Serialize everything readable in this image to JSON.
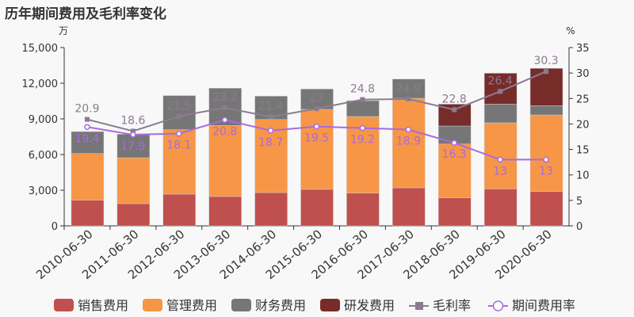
{
  "title": "历年期间费用及毛利率变化",
  "chart_data": {
    "type": "bar",
    "title": "历年期间费用及毛利率变化",
    "left_unit": "万",
    "right_unit": "%",
    "ylim_left": [
      0,
      15000
    ],
    "yticks_left": [
      "0",
      "3,000",
      "6,000",
      "9,000",
      "12,000",
      "15,000"
    ],
    "ylim_right": [
      0,
      35
    ],
    "yticks_right": [
      "0",
      "5",
      "10",
      "15",
      "20",
      "25",
      "30",
      "35"
    ],
    "categories": [
      "2010-06-30",
      "2011-06-30",
      "2012-06-30",
      "2013-06-30",
      "2014-06-30",
      "2015-06-30",
      "2016-06-30",
      "2017-06-30",
      "2018-06-30",
      "2019-06-30",
      "2020-06-30"
    ],
    "bar_series": [
      {
        "name": "销售费用",
        "color": "#c0504d",
        "values": [
          2150,
          1870,
          2670,
          2470,
          2800,
          3070,
          2760,
          3200,
          2360,
          3110,
          2890
        ]
      },
      {
        "name": "管理费用",
        "color": "#f79646",
        "values": [
          3940,
          3860,
          5420,
          5970,
          6150,
          6730,
          6440,
          7530,
          4530,
          5560,
          6440
        ]
      },
      {
        "name": "财务费用",
        "color": "#767676",
        "values": [
          1840,
          1980,
          2870,
          3140,
          1960,
          1710,
          1330,
          1620,
          1510,
          1570,
          780
        ]
      },
      {
        "name": "研发费用",
        "color": "#772c2a",
        "values": [
          0,
          0,
          0,
          0,
          0,
          0,
          0,
          0,
          1840,
          2600,
          3140
        ]
      }
    ],
    "line_series": [
      {
        "name": "毛利率",
        "color": "#8c7b8f",
        "values": [
          20.9,
          18.6,
          21.5,
          23.2,
          21.4,
          23,
          24.8,
          24.9,
          22.8,
          26.4,
          30.3
        ]
      },
      {
        "name": "期间费用率",
        "color": "#a86ae0",
        "values": [
          19.4,
          17.9,
          18.1,
          20.8,
          18.7,
          19.5,
          19.2,
          18.9,
          16.3,
          13,
          13
        ]
      }
    ],
    "legend": "bottom"
  }
}
